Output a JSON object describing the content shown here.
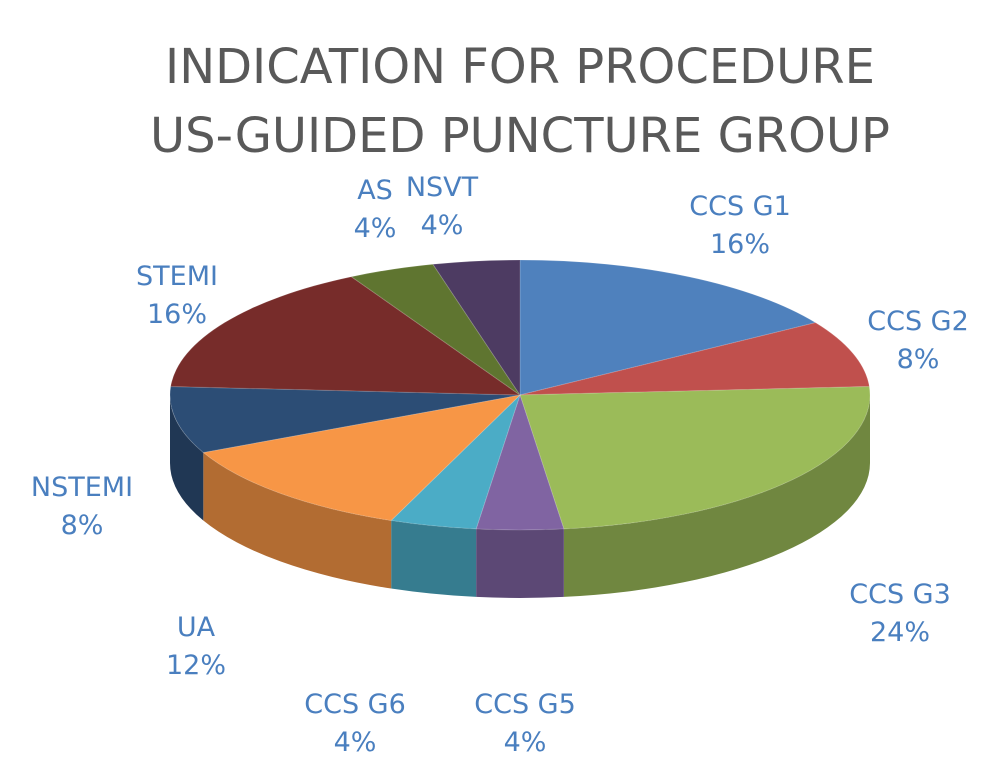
{
  "chart_data": {
    "type": "pie",
    "title": [
      "INDICATION FOR PROCEDURE",
      "US-GUIDED PUNCTURE GROUP"
    ],
    "slices": [
      {
        "label": "CCS G1",
        "value": 16,
        "value_label": "16%",
        "color": "#4f81bd"
      },
      {
        "label": "CCS G2",
        "value": 8,
        "value_label": "8%",
        "color": "#c0504d"
      },
      {
        "label": "CCS G3",
        "value": 24,
        "value_label": "24%",
        "color": "#9bbb59"
      },
      {
        "label": "CCS G5",
        "value": 4,
        "value_label": "4%",
        "color": "#8064a2"
      },
      {
        "label": "CCS G6",
        "value": 4,
        "value_label": "4%",
        "color": "#4bacc6"
      },
      {
        "label": "UA",
        "value": 12,
        "value_label": "12%",
        "color": "#f79646"
      },
      {
        "label": "NSTEMI",
        "value": 8,
        "value_label": "8%",
        "color": "#2c4d75"
      },
      {
        "label": "STEMI",
        "value": 16,
        "value_label": "16%",
        "color": "#772c2a"
      },
      {
        "label": "AS",
        "value": 4,
        "value_label": "4%",
        "color": "#5f7530"
      },
      {
        "label": "NSVT",
        "value": 4,
        "value_label": "4%",
        "color": "#4d3b62"
      }
    ],
    "style": "3d-pie",
    "data_labels": "outside"
  }
}
